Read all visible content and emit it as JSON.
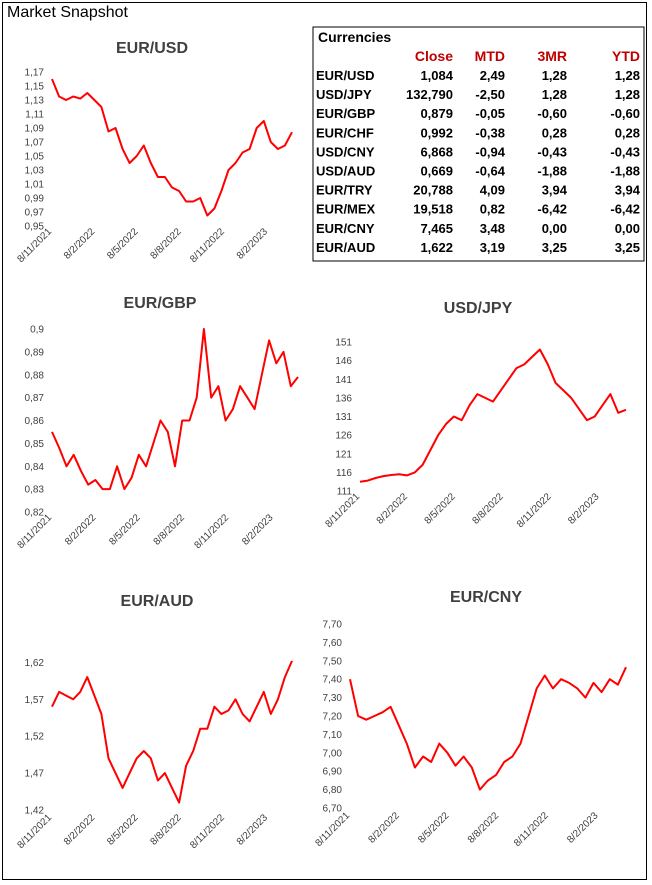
{
  "page_title": "Market Snapshot",
  "colors": {
    "line": "#ff0000",
    "header": "#c00000",
    "axis": "#404040"
  },
  "table": {
    "title": "Currencies",
    "columns": [
      "",
      "Close",
      "MTD",
      "3MR",
      "YTD"
    ],
    "rows": [
      [
        "EUR/USD",
        "1,084",
        "2,49",
        "1,28",
        "1,28"
      ],
      [
        "USD/JPY",
        "132,790",
        "-2,50",
        "1,28",
        "1,28"
      ],
      [
        "EUR/GBP",
        "0,879",
        "-0,05",
        "-0,60",
        "-0,60"
      ],
      [
        "EUR/CHF",
        "0,992",
        "-0,38",
        "0,28",
        "0,28"
      ],
      [
        "USD/CNY",
        "6,868",
        "-0,94",
        "-0,43",
        "-0,43"
      ],
      [
        "USD/AUD",
        "0,669",
        "-0,64",
        "-1,88",
        "-1,88"
      ],
      [
        "EUR/TRY",
        "20,788",
        "4,09",
        "3,94",
        "3,94"
      ],
      [
        "EUR/MEX",
        "19,518",
        "0,82",
        "-6,42",
        "-6,42"
      ],
      [
        "EUR/CNY",
        "7,465",
        "3,48",
        "0,00",
        "0,00"
      ],
      [
        "EUR/AUD",
        "1,622",
        "3,19",
        "3,25",
        "3,25"
      ]
    ]
  },
  "chart_data": [
    {
      "type": "line",
      "title": "EUR/USD",
      "x_tick_labels": [
        "8/11/2021",
        "8/2/2022",
        "8/5/2022",
        "8/8/2022",
        "8/11/2022",
        "8/2/2023"
      ],
      "y_tick_labels": [
        "1,17",
        "1,15",
        "1,13",
        "1,11",
        "1,09",
        "1,07",
        "1,05",
        "1,03",
        "1,01",
        "0,99",
        "0,97",
        "0,95"
      ],
      "ylim": [
        0.95,
        1.17
      ],
      "x": [
        0,
        0.5,
        1,
        1.5,
        2,
        2.5,
        3,
        3.5,
        4,
        4.5,
        5,
        5.5,
        6,
        6.5,
        7,
        7.5,
        8,
        8.5,
        9,
        9.5,
        10,
        10.5,
        11,
        11.5,
        12,
        12.5,
        13,
        13.5,
        14,
        14.5,
        15,
        15.5,
        16,
        16.5,
        17
      ],
      "values": [
        1.16,
        1.135,
        1.13,
        1.135,
        1.132,
        1.14,
        1.13,
        1.12,
        1.085,
        1.09,
        1.06,
        1.04,
        1.05,
        1.065,
        1.04,
        1.02,
        1.02,
        1.005,
        1.0,
        0.985,
        0.985,
        0.99,
        0.965,
        0.975,
        1.0,
        1.03,
        1.04,
        1.055,
        1.06,
        1.09,
        1.1,
        1.07,
        1.06,
        1.065,
        1.084
      ]
    },
    {
      "type": "line",
      "title": "EUR/GBP",
      "x_tick_labels": [
        "8/11/2021",
        "8/2/2022",
        "8/5/2022",
        "8/8/2022",
        "8/11/2022",
        "8/2/2023"
      ],
      "y_tick_labels": [
        "0,9",
        "0,89",
        "0,88",
        "0,87",
        "0,86",
        "0,85",
        "0,84",
        "0,83",
        "0,82"
      ],
      "ylim": [
        0.82,
        0.9
      ],
      "x": [
        0,
        0.5,
        1,
        1.5,
        2,
        2.5,
        3,
        3.5,
        4,
        4.5,
        5,
        5.5,
        6,
        6.5,
        7,
        7.5,
        8,
        8.5,
        9,
        9.5,
        10,
        10.5,
        11,
        11.5,
        12,
        12.5,
        13,
        13.5,
        14,
        14.5,
        15,
        15.5,
        16,
        16.5,
        17
      ],
      "values": [
        0.855,
        0.848,
        0.84,
        0.845,
        0.838,
        0.832,
        0.834,
        0.83,
        0.83,
        0.84,
        0.83,
        0.835,
        0.845,
        0.84,
        0.85,
        0.86,
        0.855,
        0.84,
        0.86,
        0.86,
        0.87,
        0.9,
        0.87,
        0.875,
        0.86,
        0.865,
        0.875,
        0.87,
        0.865,
        0.88,
        0.895,
        0.885,
        0.89,
        0.875,
        0.879
      ]
    },
    {
      "type": "line",
      "title": "USD/JPY",
      "x_tick_labels": [
        "8/11/2021",
        "8/2/2022",
        "8/5/2022",
        "8/8/2022",
        "8/11/2022",
        "8/2/2023"
      ],
      "y_tick_labels": [
        "151",
        "146",
        "141",
        "136",
        "131",
        "126",
        "121",
        "116",
        "111"
      ],
      "ylim": [
        111,
        151
      ],
      "x": [
        0,
        0.5,
        1,
        1.5,
        2,
        2.5,
        3,
        3.5,
        4,
        4.5,
        5,
        5.5,
        6,
        6.5,
        7,
        7.5,
        8,
        8.5,
        9,
        9.5,
        10,
        10.5,
        11,
        11.5,
        12,
        12.5,
        13,
        13.5,
        14,
        14.5,
        15,
        15.5,
        16,
        16.5,
        17
      ],
      "values": [
        113.5,
        113.8,
        114.5,
        115,
        115.3,
        115.5,
        115.2,
        116,
        118,
        122,
        126,
        129,
        131,
        130,
        134,
        137,
        136,
        135,
        138,
        141,
        144,
        145,
        147,
        149,
        145,
        140,
        138,
        136,
        133,
        130,
        131,
        134,
        137,
        132,
        132.8
      ]
    },
    {
      "type": "line",
      "title": "EUR/AUD",
      "x_tick_labels": [
        "8/11/2021",
        "8/2/2022",
        "8/5/2022",
        "8/8/2022",
        "8/11/2022",
        "8/2/2023"
      ],
      "y_tick_labels": [
        "1,62",
        "1,57",
        "1,52",
        "1,47",
        "1,42"
      ],
      "ylim": [
        1.42,
        1.63
      ],
      "x": [
        0,
        0.5,
        1,
        1.5,
        2,
        2.5,
        3,
        3.5,
        4,
        4.5,
        5,
        5.5,
        6,
        6.5,
        7,
        7.5,
        8,
        8.5,
        9,
        9.5,
        10,
        10.5,
        11,
        11.5,
        12,
        12.5,
        13,
        13.5,
        14,
        14.5,
        15,
        15.5,
        16,
        16.5,
        17
      ],
      "values": [
        1.56,
        1.58,
        1.575,
        1.57,
        1.58,
        1.6,
        1.575,
        1.55,
        1.49,
        1.47,
        1.45,
        1.47,
        1.49,
        1.5,
        1.49,
        1.46,
        1.47,
        1.45,
        1.43,
        1.48,
        1.5,
        1.53,
        1.53,
        1.56,
        1.55,
        1.555,
        1.57,
        1.55,
        1.54,
        1.56,
        1.58,
        1.55,
        1.57,
        1.6,
        1.622
      ]
    },
    {
      "type": "line",
      "title": "EUR/CNY",
      "x_tick_labels": [
        "8/11/2021",
        "8/2/2022",
        "8/5/2022",
        "8/8/2022",
        "8/11/2022",
        "8/2/2023"
      ],
      "y_tick_labels": [
        "7,70",
        "7,60",
        "7,50",
        "7,40",
        "7,30",
        "7,20",
        "7,10",
        "7,00",
        "6,90",
        "6,80",
        "6,70"
      ],
      "ylim": [
        6.7,
        7.7
      ],
      "x": [
        0,
        0.5,
        1,
        1.5,
        2,
        2.5,
        3,
        3.5,
        4,
        4.5,
        5,
        5.5,
        6,
        6.5,
        7,
        7.5,
        8,
        8.5,
        9,
        9.5,
        10,
        10.5,
        11,
        11.5,
        12,
        12.5,
        13,
        13.5,
        14,
        14.5,
        15,
        15.5,
        16,
        16.5,
        17
      ],
      "values": [
        7.4,
        7.2,
        7.18,
        7.2,
        7.22,
        7.25,
        7.15,
        7.05,
        6.92,
        6.98,
        6.95,
        7.05,
        7.0,
        6.93,
        6.98,
        6.92,
        6.8,
        6.85,
        6.88,
        6.95,
        6.98,
        7.05,
        7.2,
        7.35,
        7.42,
        7.35,
        7.4,
        7.38,
        7.35,
        7.3,
        7.38,
        7.33,
        7.4,
        7.37,
        7.465
      ]
    }
  ]
}
